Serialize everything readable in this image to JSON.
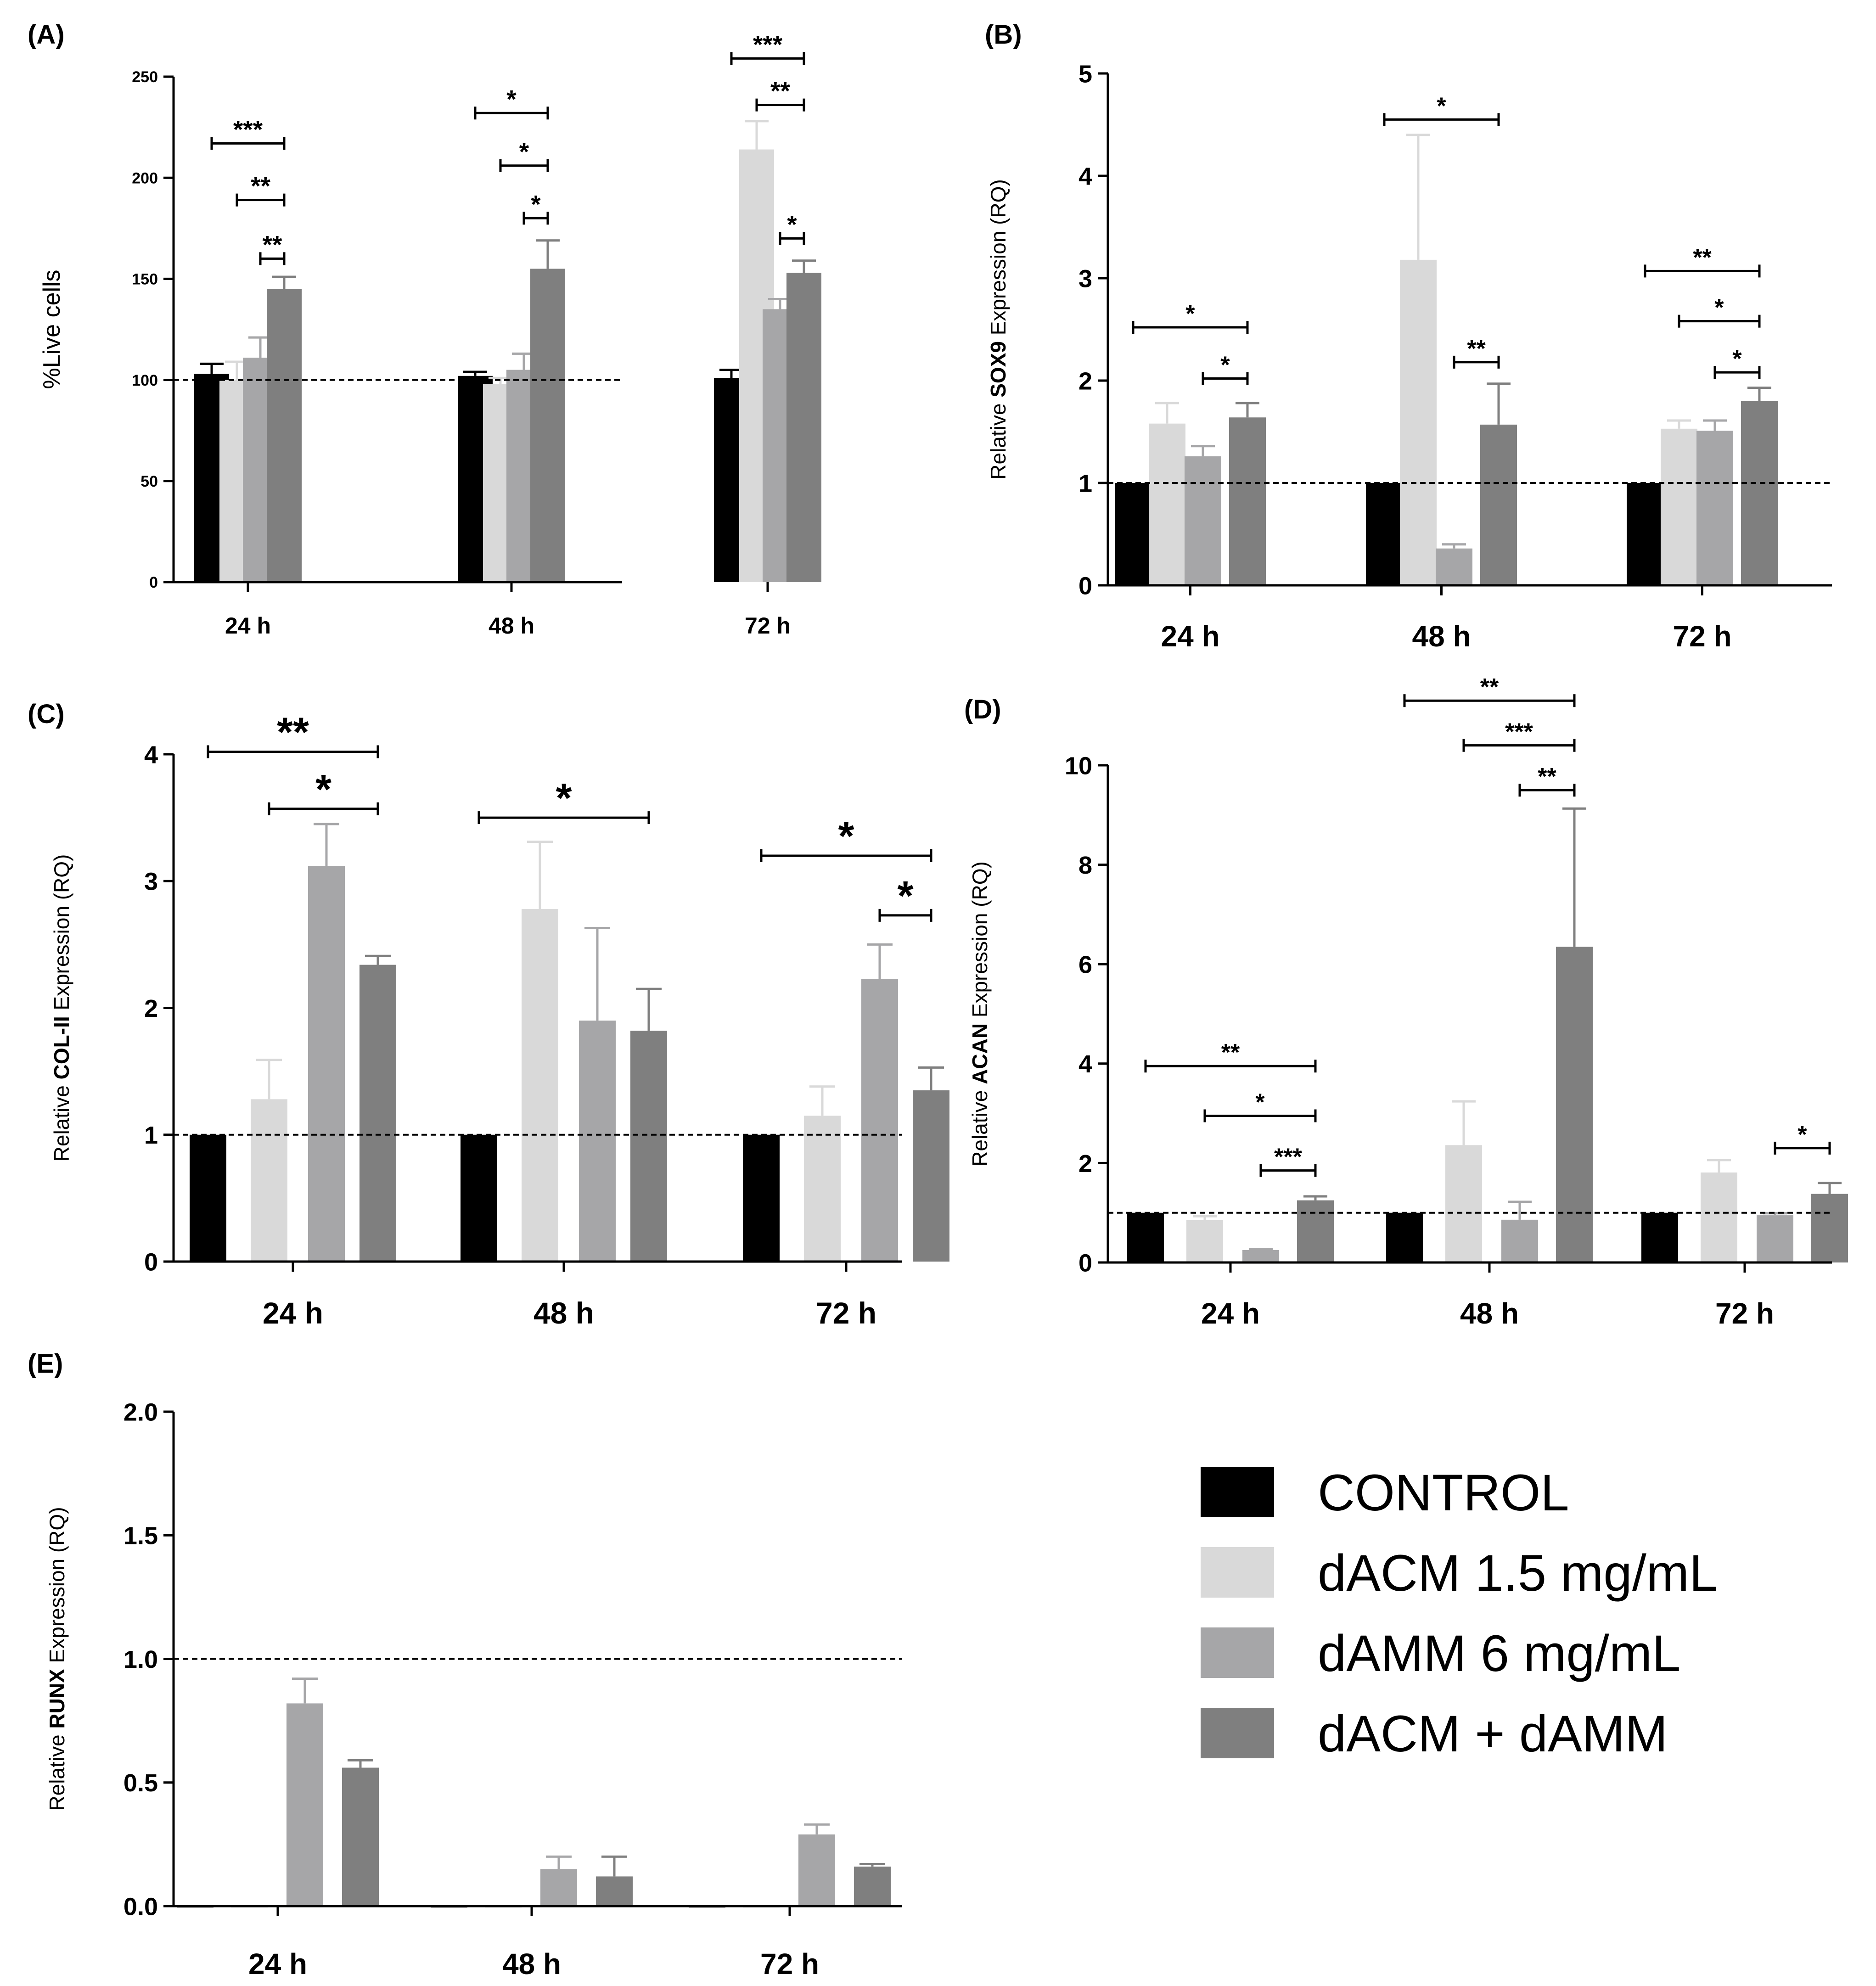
{
  "colors": {
    "CONTROL": "#000000",
    "dACM 1.5 mg/mL": "#d9d9d9",
    "dAMM 6 mg/mL": "#a6a6a8",
    "dACM + dAMM": "#7f7f7f"
  },
  "legend": {
    "items": [
      "CONTROL",
      "dACM 1.5 mg/mL",
      "dAMM 6 mg/mL",
      "dACM + dAMM"
    ]
  },
  "chart_data": [
    {
      "panel": "(A)",
      "type": "bar",
      "ylabel": "%Live cells",
      "ylabel_parts": [
        {
          "t": "%Live cells",
          "b": false
        }
      ],
      "ylim": [
        0,
        250
      ],
      "yticks": [
        0,
        50,
        100,
        150,
        200,
        250
      ],
      "reference_line": 100,
      "categories": [
        "24 h",
        "48 h",
        "72 h"
      ],
      "series": [
        {
          "name": "CONTROL",
          "values": [
            103,
            102,
            101
          ],
          "errors": [
            5,
            2,
            4
          ]
        },
        {
          "name": "dACM 1.5 mg/mL",
          "values": [
            100,
            98,
            214
          ],
          "errors": [
            9,
            3,
            14
          ]
        },
        {
          "name": "dAMM 6 mg/mL",
          "values": [
            111,
            105,
            135
          ],
          "errors": [
            10,
            8,
            5
          ]
        },
        {
          "name": "dACM + dAMM",
          "values": [
            145,
            155,
            153
          ],
          "errors": [
            6,
            14,
            6
          ]
        }
      ],
      "significance": [
        {
          "group": 0,
          "from": 0,
          "to": 3,
          "y": 217,
          "label": "***"
        },
        {
          "group": 0,
          "from": 1,
          "to": 3,
          "y": 189,
          "label": "**"
        },
        {
          "group": 0,
          "from": 2,
          "to": 3,
          "y": 160,
          "label": "**"
        },
        {
          "group": 1,
          "from": 0,
          "to": 3,
          "y": 232,
          "label": "*"
        },
        {
          "group": 1,
          "from": 1,
          "to": 3,
          "y": 206,
          "label": "*"
        },
        {
          "group": 1,
          "from": 2,
          "to": 3,
          "y": 180,
          "label": "*"
        },
        {
          "group": 2,
          "from": 0,
          "to": 3,
          "y": 259,
          "label": "***"
        },
        {
          "group": 2,
          "from": 1,
          "to": 3,
          "y": 236,
          "label": "**"
        },
        {
          "group": 2,
          "from": 2,
          "to": 3,
          "y": 170,
          "label": "*"
        }
      ]
    },
    {
      "panel": "(B)",
      "type": "bar",
      "ylabel": "Relative SOX9 Expression (RQ)",
      "ylabel_parts": [
        {
          "t": "Relative ",
          "b": false
        },
        {
          "t": "SOX9",
          "b": true
        },
        {
          "t": " Expression (RQ)",
          "b": false
        }
      ],
      "ylim": [
        0,
        5
      ],
      "yticks": [
        0,
        1,
        2,
        3,
        4,
        5
      ],
      "reference_line": 1,
      "categories": [
        "24 h",
        "48 h",
        "72 h"
      ],
      "series": [
        {
          "name": "CONTROL",
          "values": [
            1,
            1,
            1
          ],
          "errors": [
            0,
            0,
            0
          ]
        },
        {
          "name": "dACM 1.5 mg/mL",
          "values": [
            1.58,
            3.18,
            1.53
          ],
          "errors": [
            0.2,
            1.22,
            0.08
          ]
        },
        {
          "name": "dAMM 6 mg/mL",
          "values": [
            1.26,
            0.36,
            1.51
          ],
          "errors": [
            0.1,
            0.04,
            0.1
          ]
        },
        {
          "name": "dACM + dAMM",
          "values": [
            1.64,
            1.57,
            1.8
          ],
          "errors": [
            0.14,
            0.4,
            0.13
          ]
        }
      ],
      "significance": [
        {
          "group": 0,
          "from": 0,
          "to": 3,
          "y": 2.52,
          "label": "*"
        },
        {
          "group": 0,
          "from": 2,
          "to": 3,
          "y": 2.02,
          "label": "*"
        },
        {
          "group": 1,
          "from": 0,
          "to": 3,
          "y": 4.55,
          "label": "*"
        },
        {
          "group": 1,
          "from": 2,
          "to": 3,
          "y": 2.18,
          "label": "**"
        },
        {
          "group": 2,
          "from": 0,
          "to": 3,
          "y": 3.07,
          "label": "**"
        },
        {
          "group": 2,
          "from": 1,
          "to": 3,
          "y": 2.58,
          "label": "*"
        },
        {
          "group": 2,
          "from": 2,
          "to": 3,
          "y": 2.08,
          "label": "*"
        }
      ]
    },
    {
      "panel": "(C)",
      "type": "bar",
      "ylabel": "Relative COL-II Expression (RQ)",
      "ylabel_parts": [
        {
          "t": "Relative ",
          "b": false
        },
        {
          "t": "COL-II",
          "b": true
        },
        {
          "t": " Expression (RQ)",
          "b": false
        }
      ],
      "ylim": [
        0,
        4
      ],
      "yticks": [
        0,
        1,
        2,
        3,
        4
      ],
      "reference_line": 1,
      "categories": [
        "24 h",
        "48 h",
        "72 h"
      ],
      "series": [
        {
          "name": "CONTROL",
          "values": [
            1,
            1,
            1
          ],
          "errors": [
            0,
            0,
            0
          ]
        },
        {
          "name": "dACM 1.5 mg/mL",
          "values": [
            1.28,
            2.78,
            1.15
          ],
          "errors": [
            0.31,
            0.53,
            0.23
          ]
        },
        {
          "name": "dAMM 6 mg/mL",
          "values": [
            3.12,
            1.9,
            2.23
          ],
          "errors": [
            0.33,
            0.73,
            0.27
          ]
        },
        {
          "name": "dACM + dAMM",
          "values": [
            2.34,
            1.82,
            1.35
          ],
          "errors": [
            0.07,
            0.33,
            0.18
          ]
        }
      ],
      "significance": [
        {
          "group": 0,
          "from": 0,
          "to": 3,
          "y": 4.02,
          "label": "**"
        },
        {
          "group": 0,
          "from": 1,
          "to": 3,
          "y": 3.57,
          "label": "*"
        },
        {
          "group": 1,
          "from": 0,
          "to": 3,
          "y": 3.5,
          "label": "*"
        },
        {
          "group": 2,
          "from": 0,
          "to": 3,
          "y": 3.2,
          "label": "*"
        },
        {
          "group": 2,
          "from": 2,
          "to": 3,
          "y": 2.73,
          "label": "*"
        }
      ]
    },
    {
      "panel": "(D)",
      "type": "bar",
      "ylabel": "Relative ACAN Expression (RQ)",
      "ylabel_parts": [
        {
          "t": "Relative ",
          "b": false
        },
        {
          "t": "ACAN",
          "b": true
        },
        {
          "t": " Expression (RQ)",
          "b": false
        }
      ],
      "ylim": [
        0,
        10
      ],
      "yticks": [
        0,
        2,
        4,
        6,
        8,
        10
      ],
      "reference_line": 1,
      "categories": [
        "24 h",
        "48 h",
        "72 h"
      ],
      "series": [
        {
          "name": "CONTROL",
          "values": [
            1,
            1,
            1
          ],
          "errors": [
            0,
            0,
            0
          ]
        },
        {
          "name": "dACM 1.5 mg/mL",
          "values": [
            0.85,
            2.36,
            1.81
          ],
          "errors": [
            0.08,
            0.88,
            0.25
          ]
        },
        {
          "name": "dAMM 6 mg/mL",
          "values": [
            0.25,
            0.86,
            0.95
          ],
          "errors": [
            0.02,
            0.36,
            0.04
          ]
        },
        {
          "name": "dACM + dAMM",
          "values": [
            1.25,
            6.35,
            1.38
          ],
          "errors": [
            0.08,
            2.78,
            0.22
          ]
        }
      ],
      "significance": [
        {
          "group": 0,
          "from": 0,
          "to": 3,
          "y": 3.95,
          "label": "**"
        },
        {
          "group": 0,
          "from": 1,
          "to": 3,
          "y": 2.95,
          "label": "*"
        },
        {
          "group": 0,
          "from": 2,
          "to": 3,
          "y": 1.85,
          "label": "***"
        },
        {
          "group": 1,
          "from": 0,
          "to": 3,
          "y": 11.3,
          "label": "**"
        },
        {
          "group": 1,
          "from": 1,
          "to": 3,
          "y": 10.4,
          "label": "***"
        },
        {
          "group": 1,
          "from": 2,
          "to": 3,
          "y": 9.5,
          "label": "**"
        },
        {
          "group": 2,
          "from": 2,
          "to": 3,
          "y": 2.3,
          "label": "*"
        }
      ]
    },
    {
      "panel": "(E)",
      "type": "bar",
      "ylabel": "Relative RUNX Expression (RQ)",
      "ylabel_parts": [
        {
          "t": "Relative ",
          "b": false
        },
        {
          "t": "RUNX",
          "b": true
        },
        {
          "t": " Expression (RQ)",
          "b": false
        }
      ],
      "ylim": [
        0,
        2
      ],
      "yticks": [
        "0.0",
        "0.5",
        "1.0",
        "1.5",
        "2.0"
      ],
      "reference_line": 1,
      "categories": [
        "24 h",
        "48 h",
        "72 h"
      ],
      "series": [
        {
          "name": "CONTROL",
          "values": [
            0,
            0,
            0
          ],
          "errors": [
            0,
            0,
            0
          ]
        },
        {
          "name": "dACM 1.5 mg/mL",
          "values": [
            0,
            0,
            0
          ],
          "errors": [
            0,
            0,
            0
          ]
        },
        {
          "name": "dAMM 6 mg/mL",
          "values": [
            0.82,
            0.15,
            0.29
          ],
          "errors": [
            0.1,
            0.05,
            0.04
          ]
        },
        {
          "name": "dACM + dAMM",
          "values": [
            0.56,
            0.12,
            0.16
          ],
          "errors": [
            0.03,
            0.08,
            0.01
          ]
        }
      ],
      "significance": []
    }
  ]
}
